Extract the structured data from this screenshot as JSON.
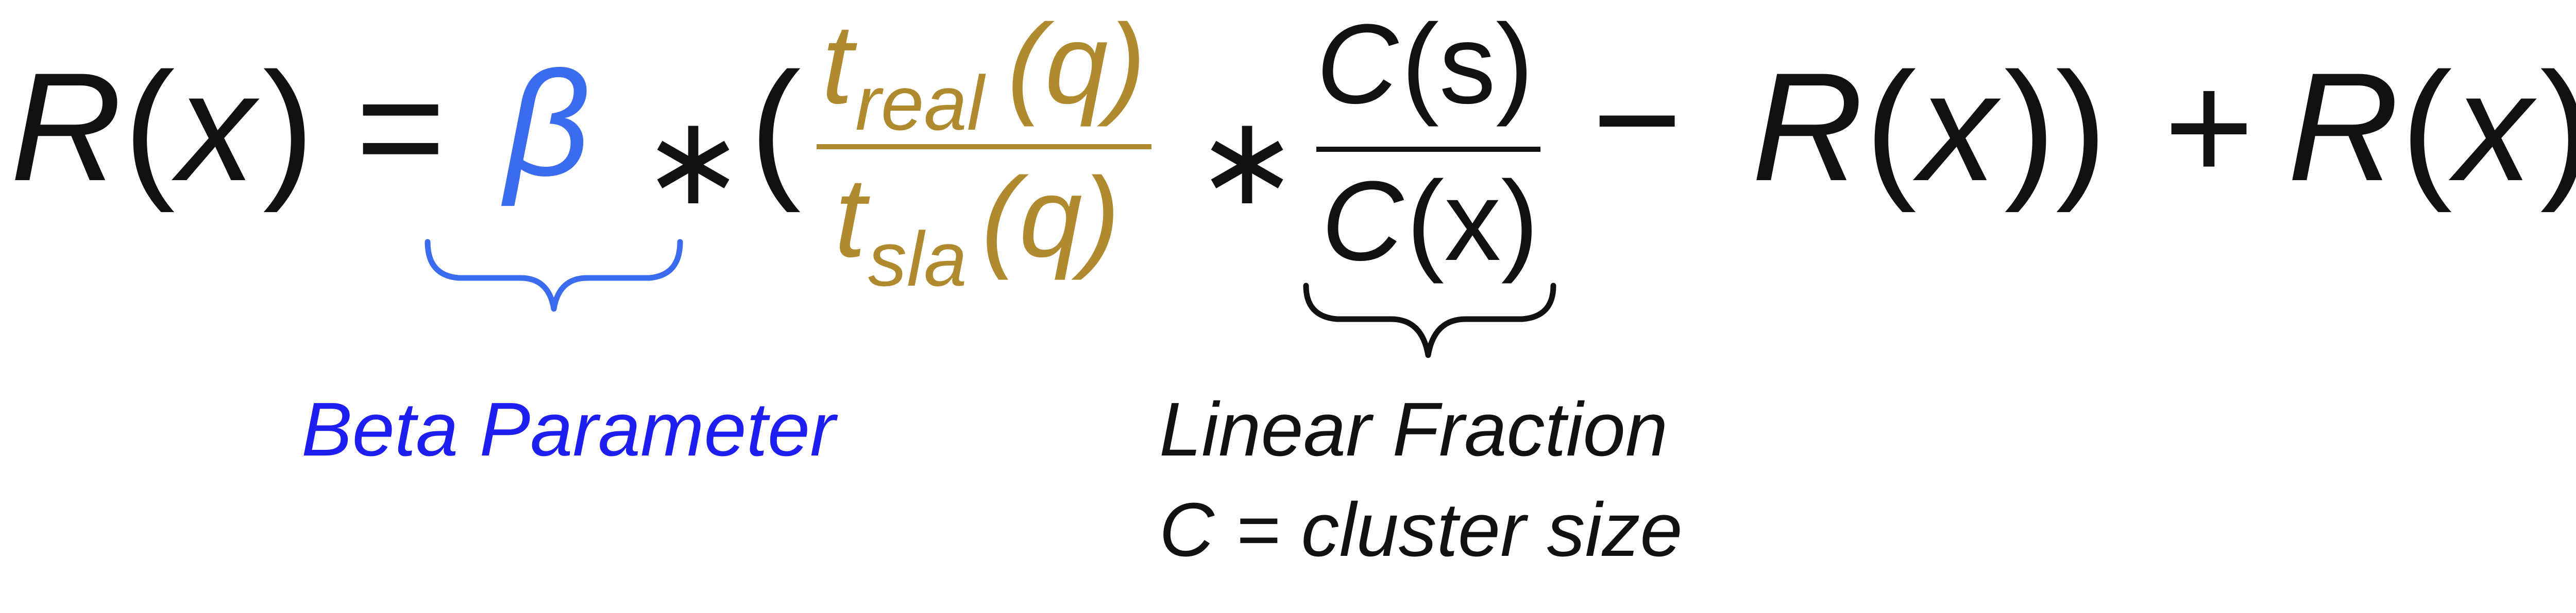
{
  "colors": {
    "text": "#111111",
    "beta": "#3B6CF0",
    "beta_label": "#1E1EF0",
    "time_ratio": "#B08A2E",
    "brace_right": "#111111"
  },
  "equation": {
    "lhs": {
      "R": "R",
      "open_paren": "(",
      "x": "x",
      "close_paren": ")"
    },
    "equals": "=",
    "beta": "β",
    "times_1": "∗",
    "big_open_paren": "(",
    "time_fraction": {
      "numerator": {
        "t": "t",
        "sub": "real",
        "arg": "(q)"
      },
      "denominator": {
        "t": "t",
        "sub": "sla",
        "arg": "(q)"
      }
    },
    "times_2": "∗",
    "size_fraction": {
      "numerator": {
        "C": "C",
        "arg": "(s)"
      },
      "denominator": {
        "C": "C",
        "arg": "(x)"
      }
    },
    "minus": "−",
    "R2": {
      "R": "R",
      "open_paren": "(",
      "x": "x",
      "close_paren": "))"
    },
    "plus": "+",
    "R3": {
      "R": "R",
      "open_paren": "(",
      "x": "x",
      "close_paren": ")"
    }
  },
  "annotations": {
    "beta_label": "Beta Parameter",
    "linear_fraction_line1": "Linear Fraction",
    "linear_fraction_line2": "C = cluster size"
  }
}
